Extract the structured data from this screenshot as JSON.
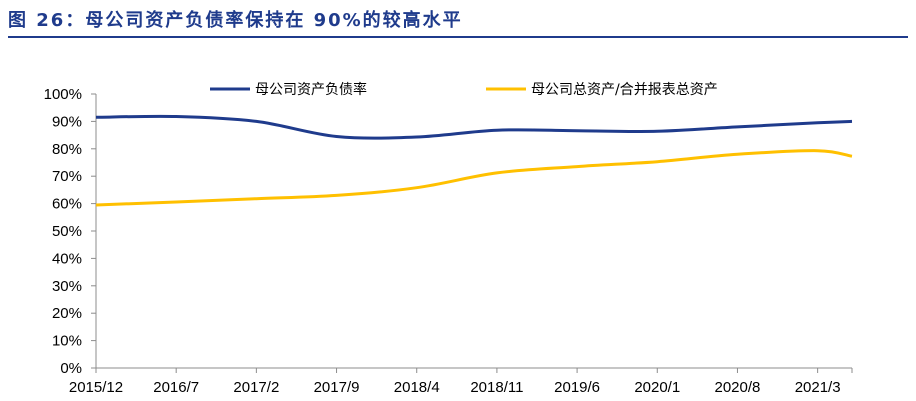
{
  "figure": {
    "title": "图 26：母公司资产负债率保持在 90%的较高水平"
  },
  "colors": {
    "title": "#1f3b8c",
    "axis": "#8c8c8c",
    "series1": "#1f3b8c",
    "series2": "#ffc000"
  },
  "chart_data": {
    "type": "line",
    "title": "",
    "xlabel": "",
    "ylabel": "",
    "ylim": [
      0,
      100
    ],
    "yticks": [
      "0%",
      "10%",
      "20%",
      "30%",
      "40%",
      "50%",
      "60%",
      "70%",
      "80%",
      "90%",
      "100%"
    ],
    "xticks": [
      "2015/12",
      "2016/7",
      "2017/2",
      "2017/9",
      "2018/4",
      "2018/11",
      "2019/6",
      "2020/1",
      "2020/8",
      "2021/3"
    ],
    "x": [
      0,
      7,
      14,
      21,
      28,
      35,
      42,
      49,
      56,
      63,
      66
    ],
    "series": [
      {
        "name": "母公司资产负债率",
        "color": "#1f3b8c",
        "values": [
          91.5,
          91.8,
          90.0,
          84.5,
          84.3,
          86.8,
          86.6,
          86.4,
          88.0,
          89.5,
          90.0
        ]
      },
      {
        "name": "母公司总资产/合并报表总资产",
        "color": "#ffc000",
        "values": [
          59.5,
          60.6,
          61.8,
          63.0,
          65.8,
          71.2,
          73.5,
          75.3,
          78.0,
          79.3,
          77.3
        ]
      }
    ],
    "legend": "top"
  }
}
